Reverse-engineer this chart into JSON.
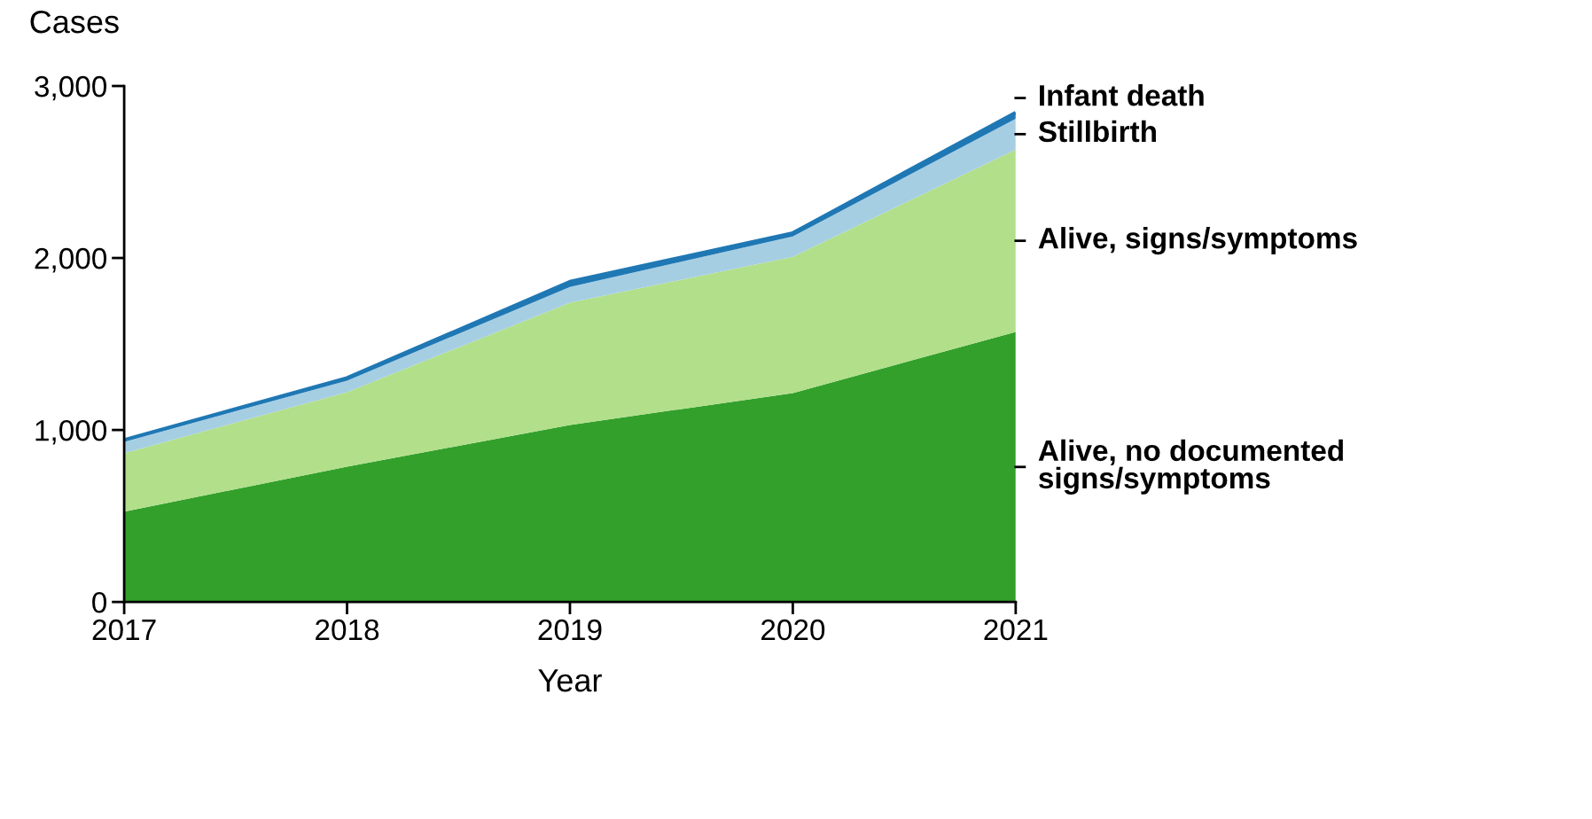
{
  "chart_data": {
    "type": "area",
    "stacked": true,
    "ylabel": "Cases",
    "xlabel": "Year",
    "x": [
      2017,
      2018,
      2019,
      2020,
      2021
    ],
    "xlim": [
      2017,
      2021
    ],
    "xticks": [
      2017,
      2018,
      2019,
      2020,
      2021
    ],
    "ylim": [
      0,
      3000
    ],
    "yticks": [
      0,
      {
        "value": 1000,
        "label": "1,000"
      },
      {
        "value": 2000,
        "label": "2,000"
      },
      {
        "value": 3000,
        "label": "3,000"
      }
    ],
    "grid": false,
    "legend": false,
    "series": [
      {
        "name": "Alive, no documented\nsigns/symptoms",
        "color": "#33a02c",
        "values": [
          525,
          787,
          1029,
          1215,
          1570
        ]
      },
      {
        "name": "Alive, signs/symptoms",
        "color": "#b2df8a",
        "values": [
          340,
          433,
          711,
          792,
          1060
        ]
      },
      {
        "name": "Stillbirth",
        "color": "#a6cee3",
        "values": [
          67,
          67,
          92,
          118,
          180
        ]
      },
      {
        "name": "Infant death",
        "color": "#1f78b4",
        "values": [
          10,
          15,
          30,
          20,
          35
        ]
      }
    ]
  }
}
